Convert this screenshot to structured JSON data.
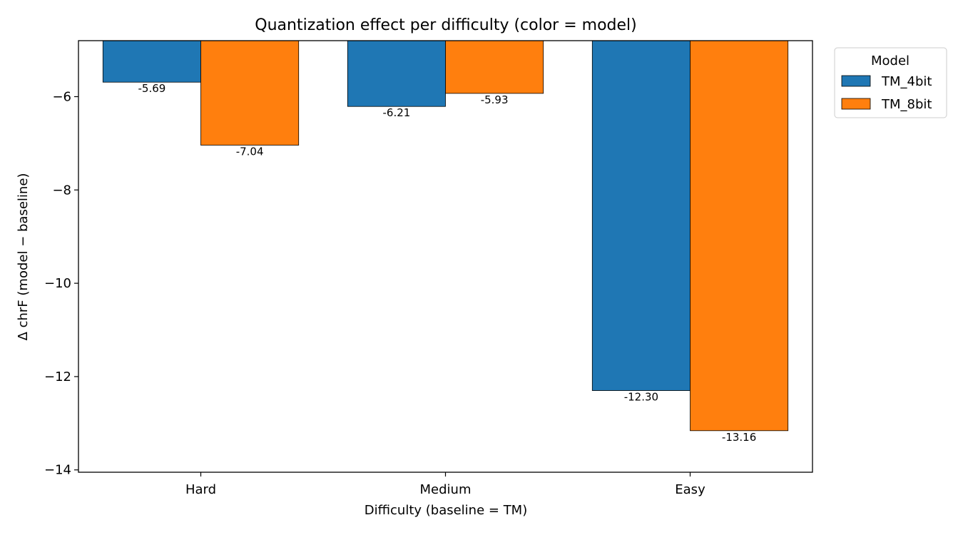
{
  "chart_data": {
    "type": "bar",
    "title": "Quantization effect per difficulty (color = model)",
    "xlabel": "Difficulty (baseline = TM)",
    "ylabel": "Δ chrF (model − baseline)",
    "categories": [
      "Hard",
      "Medium",
      "Easy"
    ],
    "series": [
      {
        "name": "TM_4bit",
        "color": "#1f77b4",
        "values": [
          -5.69,
          -6.21,
          -12.3
        ],
        "labels": [
          "-5.69",
          "-6.21",
          "-12.30"
        ]
      },
      {
        "name": "TM_8bit",
        "color": "#ff7f0e",
        "values": [
          -7.04,
          -5.93,
          -13.16
        ],
        "labels": [
          "-7.04",
          "-5.93",
          "-13.16"
        ]
      }
    ],
    "ylim": [
      -14.05,
      -4.8
    ],
    "yticks": [
      -6,
      -8,
      -10,
      -12,
      -14
    ],
    "ytick_labels": [
      "−6",
      "−8",
      "−10",
      "−12",
      "−14"
    ],
    "grid": false,
    "legend": {
      "title": "Model",
      "placement": "outside upper-right"
    }
  }
}
